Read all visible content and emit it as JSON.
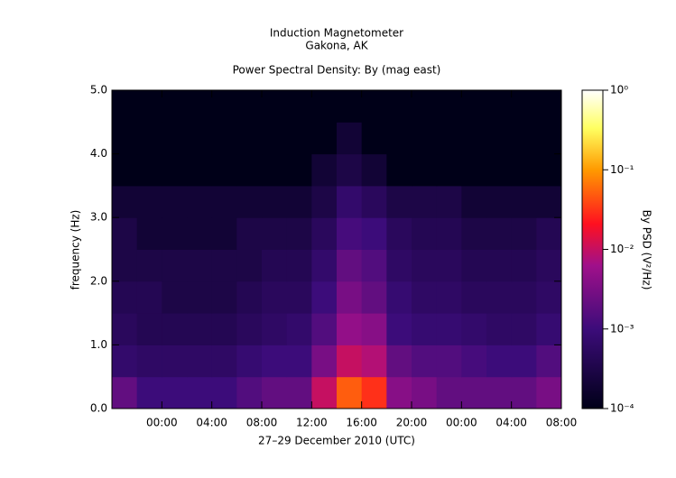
{
  "chart_data": {
    "type": "heatmap",
    "title": "Induction Magnetometer",
    "subtitle": "Gakona, AK",
    "plot_title": "Power Spectral Density: By (mag east)",
    "x_label": "27–29 December 2010 (UTC)",
    "y_label": "frequency (Hz)",
    "xlim": [
      -4,
      32
    ],
    "ylim": [
      0,
      5
    ],
    "xticks": [
      {
        "value": 0,
        "label": "00:00"
      },
      {
        "value": 4,
        "label": "04:00"
      },
      {
        "value": 8,
        "label": "08:00"
      },
      {
        "value": 12,
        "label": "12:00"
      },
      {
        "value": 16,
        "label": "16:00"
      },
      {
        "value": 20,
        "label": "20:00"
      },
      {
        "value": 24,
        "label": "00:00"
      },
      {
        "value": 28,
        "label": "04:00"
      },
      {
        "value": 32,
        "label": "08:00"
      }
    ],
    "yticks": [
      {
        "value": 0,
        "label": "0.0"
      },
      {
        "value": 1,
        "label": "1.0"
      },
      {
        "value": 2,
        "label": "2.0"
      },
      {
        "value": 3,
        "label": "3.0"
      },
      {
        "value": 4,
        "label": "4.0"
      },
      {
        "value": 5,
        "label": "5.0"
      }
    ],
    "x_bins": [
      -4,
      -2,
      0,
      2,
      4,
      6,
      8,
      10,
      12,
      14,
      16,
      18,
      20,
      22,
      24,
      26,
      28,
      30,
      32
    ],
    "y_bins": [
      0,
      0.5,
      1,
      1.5,
      2,
      2.5,
      3,
      3.5,
      4,
      4.5,
      5
    ],
    "values": [
      [
        0.002,
        0.001,
        0.001,
        0.001,
        0.001,
        0.0015,
        0.002,
        0.002,
        0.01,
        0.05,
        0.03,
        0.004,
        0.003,
        0.002,
        0.002,
        0.002,
        0.002,
        0.003
      ],
      [
        0.0007,
        0.0006,
        0.0006,
        0.0006,
        0.0006,
        0.0008,
        0.001,
        0.001,
        0.003,
        0.01,
        0.008,
        0.002,
        0.0015,
        0.0015,
        0.0012,
        0.001,
        0.001,
        0.0015
      ],
      [
        0.0005,
        0.0004,
        0.0004,
        0.0004,
        0.0004,
        0.0005,
        0.0006,
        0.0007,
        0.0015,
        0.005,
        0.004,
        0.001,
        0.0008,
        0.0008,
        0.0007,
        0.0006,
        0.0006,
        0.0008
      ],
      [
        0.0004,
        0.0004,
        0.0003,
        0.0003,
        0.0003,
        0.0004,
        0.0005,
        0.0005,
        0.001,
        0.003,
        0.002,
        0.0008,
        0.0006,
        0.0006,
        0.0005,
        0.0005,
        0.0005,
        0.0006
      ],
      [
        0.0003,
        0.0003,
        0.0003,
        0.0003,
        0.0003,
        0.0003,
        0.0004,
        0.0004,
        0.0007,
        0.002,
        0.0015,
        0.0006,
        0.0005,
        0.0005,
        0.0004,
        0.0004,
        0.0004,
        0.0005
      ],
      [
        0.0003,
        0.0002,
        0.0002,
        0.0002,
        0.0002,
        0.0003,
        0.0003,
        0.0003,
        0.0005,
        0.0012,
        0.001,
        0.0005,
        0.0004,
        0.0004,
        0.0003,
        0.0003,
        0.0003,
        0.0004
      ],
      [
        0.0002,
        0.0002,
        0.0002,
        0.0002,
        0.0002,
        0.0002,
        0.0002,
        0.0002,
        0.0003,
        0.0007,
        0.0005,
        0.0003,
        0.0003,
        0.0003,
        0.0002,
        0.0002,
        0.0002,
        0.0002
      ],
      [
        0.0001,
        0.0001,
        0.0001,
        0.0001,
        0.0001,
        0.0001,
        0.0001,
        0.0001,
        0.0002,
        0.0003,
        0.0002,
        0.0001,
        0.0001,
        0.0001,
        0.0001,
        0.0001,
        0.0001,
        0.0001
      ],
      [
        0.0001,
        0.0001,
        0.0001,
        0.0001,
        0.0001,
        0.0001,
        0.0001,
        0.0001,
        0.0001,
        0.0002,
        0.0001,
        0.0001,
        0.0001,
        0.0001,
        0.0001,
        0.0001,
        0.0001,
        0.0001
      ],
      [
        0.0001,
        0.0001,
        0.0001,
        0.0001,
        0.0001,
        0.0001,
        0.0001,
        0.0001,
        0.0001,
        0.0001,
        0.0001,
        0.0001,
        0.0001,
        0.0001,
        0.0001,
        0.0001,
        0.0001,
        0.0001
      ]
    ],
    "colorbar": {
      "label": "By PSD (V²/Hz)",
      "lim": [
        0.0001,
        1
      ],
      "log": true,
      "ticks": [
        {
          "value": 0.0001,
          "label": "10⁻⁴"
        },
        {
          "value": 0.001,
          "label": "10⁻³"
        },
        {
          "value": 0.01,
          "label": "10⁻²"
        },
        {
          "value": 0.1,
          "label": "10⁻¹"
        },
        {
          "value": 1,
          "label": "10⁰"
        }
      ]
    }
  }
}
